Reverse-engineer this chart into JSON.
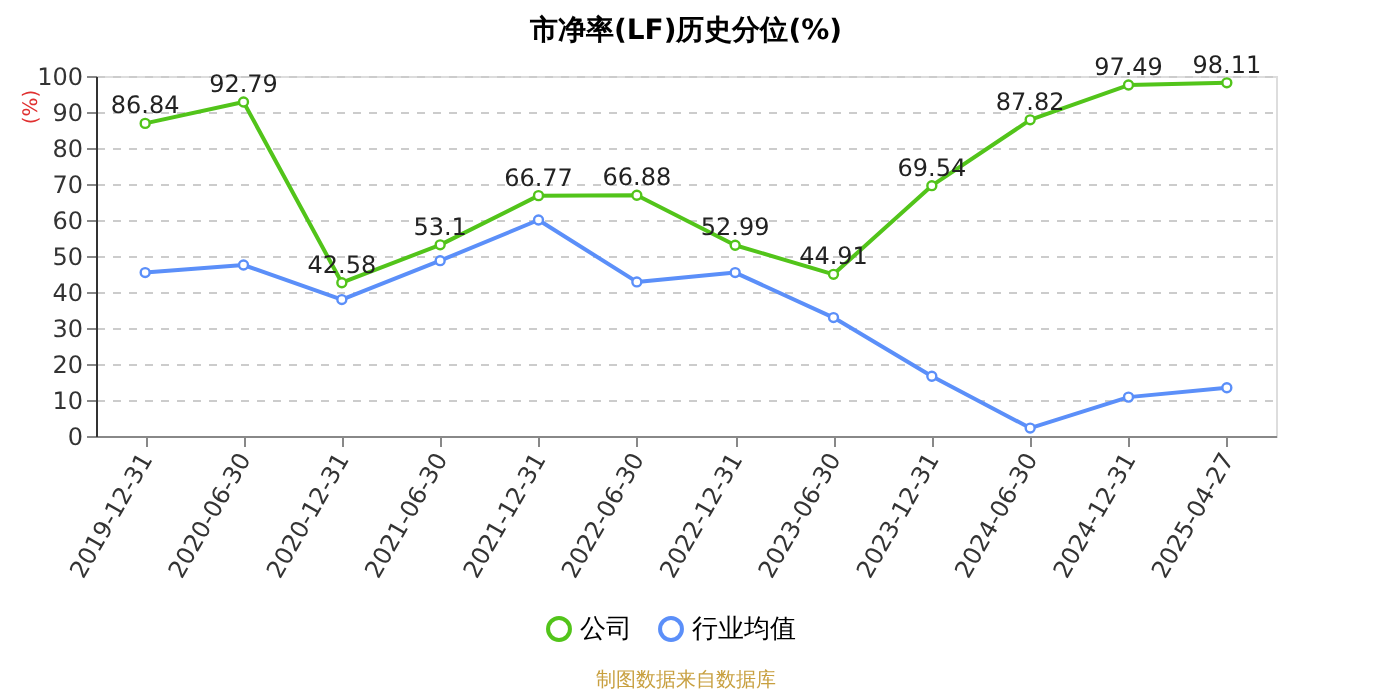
{
  "chart_data": {
    "type": "line",
    "title": "市净率(LF)历史分位(%)",
    "ylabel": "(%)",
    "categories": [
      "2019-12-31",
      "2020-06-30",
      "2020-12-31",
      "2021-06-30",
      "2021-12-31",
      "2022-06-30",
      "2022-12-31",
      "2023-06-30",
      "2023-12-31",
      "2024-06-30",
      "2024-12-31",
      "2025-04-27"
    ],
    "series": [
      {
        "name": "公司",
        "color": "#52c41a",
        "values": [
          86.84,
          92.79,
          42.58,
          53.1,
          66.77,
          66.88,
          52.99,
          44.91,
          69.54,
          87.82,
          97.49,
          98.11
        ],
        "value_labels": [
          "86.84",
          "92.79",
          "42.58",
          "53.1",
          "66.77",
          "66.88",
          "52.99",
          "44.91",
          "69.54",
          "87.82",
          "97.49",
          "98.11"
        ]
      },
      {
        "name": "行业均值",
        "color": "#5b8ff9",
        "values": [
          45.4,
          47.5,
          37.9,
          48.7,
          60.0,
          42.8,
          45.4,
          32.9,
          16.6,
          2.2,
          10.8,
          13.4
        ]
      }
    ],
    "ylim": [
      0,
      100
    ],
    "yticks": [
      0,
      10,
      20,
      30,
      40,
      50,
      60,
      70,
      80,
      90,
      100
    ],
    "grid": "y",
    "legend": "bottom",
    "marker": "circle",
    "line_style": "solid",
    "annotations": [
      "制图数据来自数据库"
    ]
  }
}
